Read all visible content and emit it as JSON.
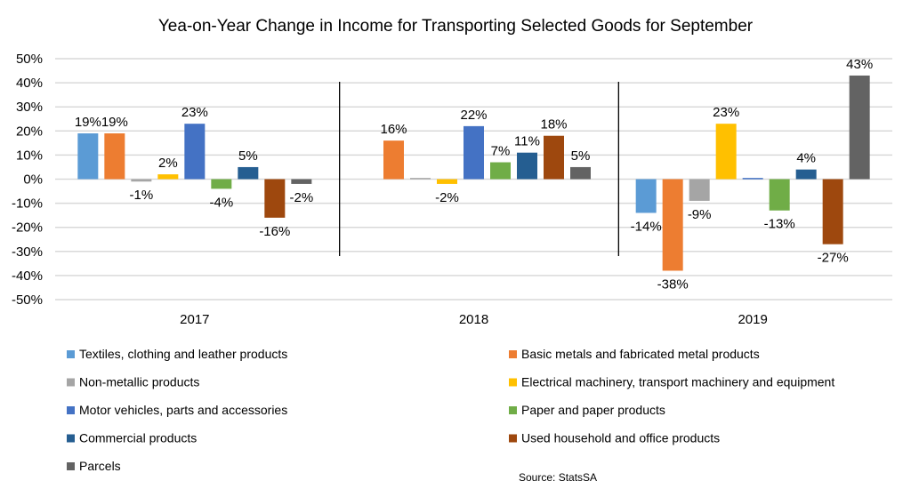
{
  "chart_data": {
    "type": "bar",
    "title": "Yea-on-Year Change in Income for Transporting Selected Goods for September",
    "xlabel": "",
    "ylabel": "",
    "ylim": [
      -50,
      50
    ],
    "yticks": [
      50,
      40,
      30,
      20,
      10,
      0,
      -10,
      -20,
      -30,
      -40,
      -50
    ],
    "ytick_labels": [
      "50%",
      "40%",
      "30%",
      "20%",
      "10%",
      "0%",
      "-10%",
      "-20%",
      "-30%",
      "-40%",
      "-50%"
    ],
    "grid": true,
    "legend_position": "bottom",
    "categories": [
      "2017",
      "2018",
      "2019"
    ],
    "series": [
      {
        "name": "Textiles, clothing and leather products",
        "color": "#5B9BD5",
        "values": [
          19,
          null,
          -14
        ],
        "labels": [
          "19%",
          "",
          "-14%"
        ]
      },
      {
        "name": "Basic metals and fabricated metal products",
        "color": "#ED7D31",
        "values": [
          19,
          16,
          -38
        ],
        "labels": [
          "19%",
          "16%",
          "-38%"
        ]
      },
      {
        "name": "Non-metallic products",
        "color": "#A5A5A5",
        "values": [
          -1,
          0.5,
          -9
        ],
        "labels": [
          "-1%",
          "",
          "-9%"
        ]
      },
      {
        "name": "Electrical machinery, transport machinery and equipment",
        "color": "#FFC000",
        "values": [
          2,
          -2,
          23
        ],
        "labels": [
          "2%",
          "-2%",
          "23%"
        ]
      },
      {
        "name": "Motor vehicles, parts and accessories",
        "color": "#4472C4",
        "values": [
          23,
          22,
          0.5
        ],
        "labels": [
          "23%",
          "22%",
          ""
        ]
      },
      {
        "name": "Paper and paper products",
        "color": "#70AD47",
        "values": [
          -4,
          7,
          -13
        ],
        "labels": [
          "-4%",
          "7%",
          "-13%"
        ]
      },
      {
        "name": "Commercial products",
        "color": "#255E91",
        "values": [
          5,
          11,
          4
        ],
        "labels": [
          "5%",
          "11%",
          "4%"
        ]
      },
      {
        "name": "Used household and office products",
        "color": "#9E480E",
        "values": [
          -16,
          18,
          -27
        ],
        "labels": [
          "-16%",
          "18%",
          "-27%"
        ]
      },
      {
        "name": "Parcels",
        "color": "#636363",
        "values": [
          -2,
          5,
          43
        ],
        "labels": [
          "-2%",
          "5%",
          "43%"
        ]
      }
    ],
    "source": "Source: StatsSA"
  }
}
